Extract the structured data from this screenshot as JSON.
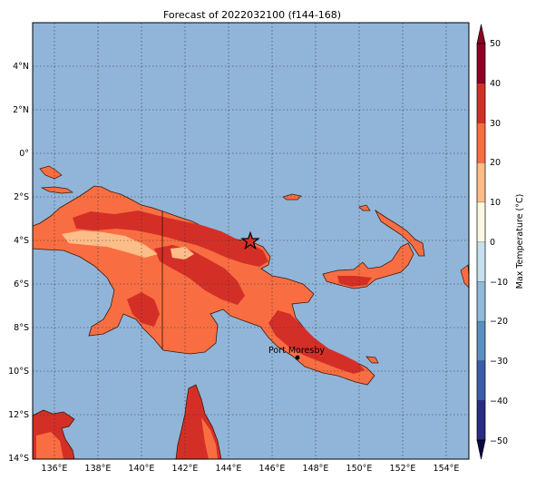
{
  "title": "Forecast of 2022032100 (f144-168)",
  "map": {
    "lon_range": [
      135,
      155
    ],
    "lat_range": [
      -14,
      6
    ],
    "lon_ticks": [
      "136°E",
      "138°E",
      "140°E",
      "142°E",
      "144°E",
      "146°E",
      "148°E",
      "150°E",
      "152°E",
      "154°E"
    ],
    "lat_ticks": [
      "4°N",
      "2°N",
      "0°",
      "2°S",
      "4°S",
      "6°S",
      "8°S",
      "10°S",
      "12°S",
      "14°S"
    ],
    "ocean_color": "#91b5d9",
    "gridlines": "dotted"
  },
  "markers": {
    "star_icon": "black-outlined star",
    "city_label": "Port Moresby",
    "city_dot_icon": "black dot"
  },
  "colorbar": {
    "label": "Max Temperature (°C)",
    "ticks": [
      "50",
      "40",
      "30",
      "20",
      "10",
      "0",
      "−10",
      "−20",
      "−30",
      "−40",
      "−50"
    ],
    "extend": "both",
    "bands": [
      {
        "from": -50,
        "to": -40,
        "color": "#282c83"
      },
      {
        "from": -40,
        "to": -30,
        "color": "#3a5ea8"
      },
      {
        "from": -30,
        "to": -20,
        "color": "#5b8fc0"
      },
      {
        "from": -20,
        "to": -10,
        "color": "#8fbad9"
      },
      {
        "from": -10,
        "to": 0,
        "color": "#c6e1ee"
      },
      {
        "from": 0,
        "to": 10,
        "color": "#fbf8df"
      },
      {
        "from": 10,
        "to": 20,
        "color": "#fdbd88"
      },
      {
        "from": 20,
        "to": 30,
        "color": "#f86e42"
      },
      {
        "from": 30,
        "to": 40,
        "color": "#d42f27"
      },
      {
        "from": 40,
        "to": 50,
        "color": "#8e0026"
      }
    ]
  },
  "colors": {
    "land_20_30": "#f86e42",
    "land_30_40": "#d42f27",
    "land_10_20": "#fdbd88",
    "coast": "#3a1a0a"
  }
}
